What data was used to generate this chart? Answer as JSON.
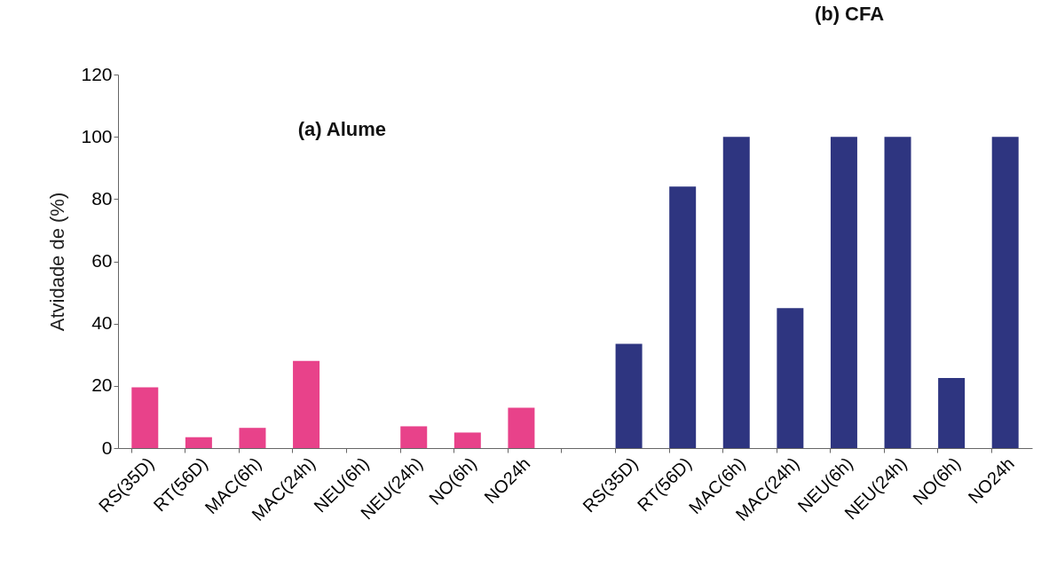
{
  "chart_data": {
    "type": "bar",
    "ylabel": "Atvidade de (%)",
    "categories": [
      "RS(35D)",
      "RT(56D)",
      "MAC(6h)",
      "MAC(24h)",
      "NEU(6h)",
      "NEU(24h)",
      "NO(6h)",
      "NO24h",
      null,
      "RS(35D)",
      "RT(56D)",
      "MAC(6h)",
      "MAC(24h)",
      "NEU(6h)",
      "NEU(24h)",
      "NO(6h)",
      "NO24h"
    ],
    "values": [
      19.5,
      3.5,
      6.5,
      28,
      0,
      7,
      5,
      13,
      null,
      33.5,
      84,
      100,
      45,
      100,
      100,
      22.5,
      100
    ],
    "colors": [
      "#e8428a",
      "#e8428a",
      "#e8428a",
      "#e8428a",
      "#e8428a",
      "#e8428a",
      "#e8428a",
      "#e8428a",
      "#e8428a",
      "#2e3580",
      "#2e3580",
      "#2e3580",
      "#2e3580",
      "#2e3580",
      "#2e3580",
      "#2e3580",
      "#2e3580"
    ],
    "ylim": [
      0,
      120
    ],
    "yticks": [
      0,
      20,
      40,
      60,
      80,
      100,
      120
    ],
    "grid": false,
    "annotations": [
      "(a) Alume",
      "(b) CFA"
    ]
  }
}
